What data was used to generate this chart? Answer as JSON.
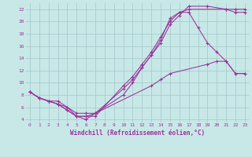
{
  "background_color": "#c8e8e8",
  "grid_color": "#a8cccc",
  "line_color": "#993399",
  "xlabel": "Windchill (Refroidissement éolien,°C)",
  "xlim": [
    -0.5,
    23.5
  ],
  "ylim": [
    3.5,
    23
  ],
  "xticks": [
    0,
    1,
    2,
    3,
    4,
    5,
    6,
    7,
    8,
    9,
    10,
    11,
    12,
    13,
    14,
    15,
    16,
    17,
    18,
    19,
    20,
    21,
    22,
    23
  ],
  "yticks": [
    4,
    6,
    8,
    10,
    12,
    14,
    16,
    18,
    20,
    22
  ],
  "curve1_x": [
    0,
    1,
    2,
    3,
    4,
    5,
    6,
    7,
    13,
    14,
    15,
    19,
    20,
    21,
    22,
    23
  ],
  "curve1_y": [
    8.5,
    7.5,
    7.0,
    6.5,
    6.0,
    5.0,
    5.0,
    5.0,
    9.5,
    10.5,
    11.5,
    13.0,
    13.5,
    13.5,
    11.5,
    11.5
  ],
  "curve2_x": [
    0,
    1,
    2,
    3,
    4,
    5,
    6,
    7,
    10,
    11,
    12,
    13,
    14,
    15,
    16,
    17,
    21,
    22,
    23
  ],
  "curve2_y": [
    8.5,
    7.5,
    7.0,
    6.5,
    5.5,
    4.5,
    4.5,
    4.5,
    9.5,
    11.0,
    13.0,
    15.0,
    17.5,
    20.0,
    21.5,
    22.0,
    22.0,
    22.0,
    22.0
  ],
  "curve3_x": [
    0,
    1,
    2,
    3,
    4,
    5,
    6,
    7,
    10,
    11,
    12,
    13,
    14,
    15,
    16,
    17,
    18,
    19,
    20,
    21,
    22,
    23
  ],
  "curve3_y": [
    8.5,
    7.5,
    7.0,
    6.5,
    5.5,
    4.5,
    4.5,
    5.0,
    9.0,
    10.5,
    12.5,
    14.5,
    17.0,
    20.5,
    21.5,
    21.5,
    19.0,
    16.5,
    15.0,
    13.5,
    11.5,
    11.5
  ],
  "curve4_x": [
    0,
    1,
    2,
    3,
    4,
    5,
    6,
    7,
    10,
    11,
    12,
    13,
    14,
    15,
    16,
    17,
    19,
    21,
    22,
    23
  ],
  "curve4_y": [
    8.5,
    7.5,
    7.0,
    7.0,
    6.0,
    4.5,
    4.0,
    5.0,
    8.0,
    10.0,
    12.5,
    14.5,
    16.5,
    19.5,
    21.0,
    22.5,
    22.5,
    22.0,
    21.5,
    21.5
  ]
}
